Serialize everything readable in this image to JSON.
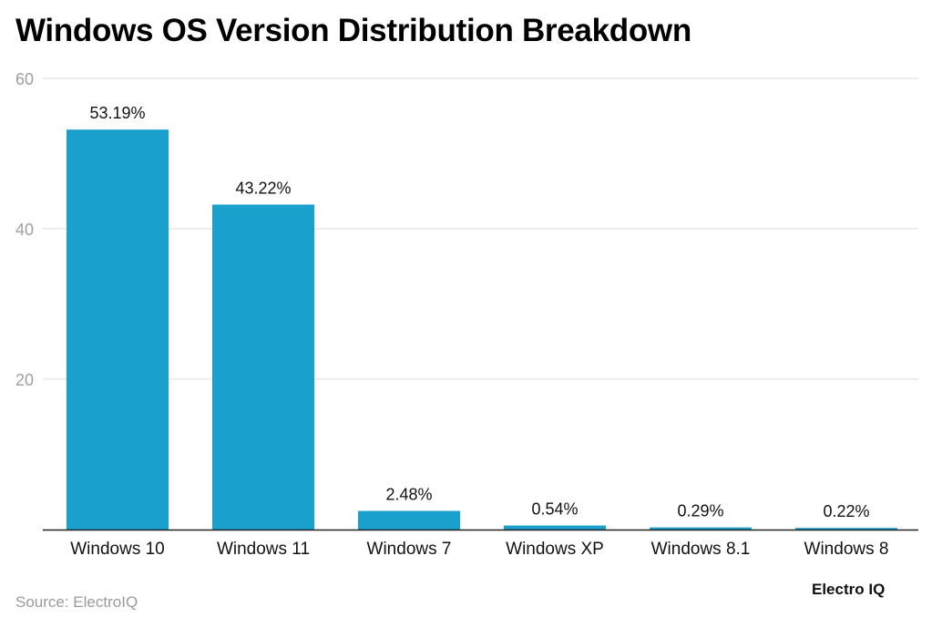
{
  "title": "Windows OS Version Distribution Breakdown",
  "source": "Source: ElectroIQ",
  "brand": "Electro IQ",
  "colors": {
    "bar": "#1aa0cc",
    "grid": "#dddddd",
    "axis": "#222222",
    "tick_label": "#a0a0a0",
    "label": "#111111"
  },
  "chart_data": {
    "type": "bar",
    "categories": [
      "Windows 10",
      "Windows 11",
      "Windows 7",
      "Windows XP",
      "Windows 8.1",
      "Windows 8"
    ],
    "values": [
      53.19,
      43.22,
      2.48,
      0.54,
      0.29,
      0.22
    ],
    "value_labels": [
      "53.19%",
      "43.22%",
      "2.48%",
      "0.54%",
      "0.29%",
      "0.22%"
    ],
    "yticks": [
      20,
      40,
      60
    ],
    "ylim": [
      0,
      60
    ],
    "grid": true,
    "title": "Windows OS Version Distribution Breakdown",
    "xlabel": "",
    "ylabel": ""
  }
}
